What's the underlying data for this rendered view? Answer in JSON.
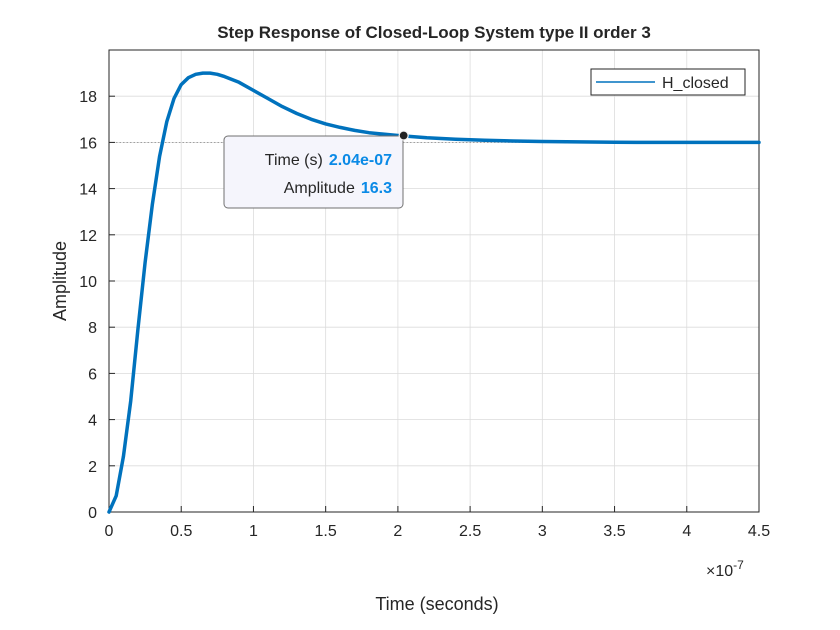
{
  "chart_data": {
    "type": "line",
    "title": "Step Response of Closed-Loop System type II order 3",
    "xlabel": "Time (seconds)",
    "ylabel": "Amplitude",
    "x_exponent_label": "×10",
    "x_exponent_power": "-7",
    "xlim": [
      0,
      4.5
    ],
    "ylim": [
      0,
      20
    ],
    "x_ticks": [
      "0",
      "0.5",
      "1",
      "1.5",
      "2",
      "2.5",
      "3",
      "3.5",
      "4",
      "4.5"
    ],
    "y_ticks": [
      "0",
      "2",
      "4",
      "6",
      "8",
      "10",
      "12",
      "14",
      "16",
      "18"
    ],
    "grid": true,
    "legend_position": "top-right",
    "series": [
      {
        "name": "H_closed",
        "color": "#0072bd",
        "x": [
          0,
          0.05,
          0.1,
          0.15,
          0.2,
          0.25,
          0.3,
          0.35,
          0.4,
          0.45,
          0.5,
          0.55,
          0.6,
          0.65,
          0.7,
          0.75,
          0.8,
          0.9,
          1.0,
          1.1,
          1.2,
          1.3,
          1.4,
          1.5,
          1.6,
          1.7,
          1.8,
          1.9,
          2.0,
          2.1,
          2.2,
          2.4,
          2.6,
          2.8,
          3.0,
          3.25,
          3.5,
          3.75,
          4.0,
          4.25,
          4.5
        ],
        "y": [
          0,
          0.7,
          2.4,
          4.8,
          7.9,
          10.8,
          13.3,
          15.4,
          16.9,
          17.9,
          18.5,
          18.8,
          18.95,
          19.0,
          19.0,
          18.95,
          18.85,
          18.6,
          18.25,
          17.9,
          17.55,
          17.25,
          17.0,
          16.8,
          16.65,
          16.52,
          16.42,
          16.36,
          16.3,
          16.25,
          16.2,
          16.14,
          16.09,
          16.06,
          16.04,
          16.02,
          16.01,
          16.0,
          16.0,
          16.0,
          16.0
        ]
      }
    ],
    "reference_y": 16,
    "datatip": {
      "x": 2.04,
      "y": 16.3,
      "label_time": "Time (s)",
      "value_time": "2.04e-07",
      "label_amplitude": "Amplitude",
      "value_amplitude": "16.3"
    }
  }
}
